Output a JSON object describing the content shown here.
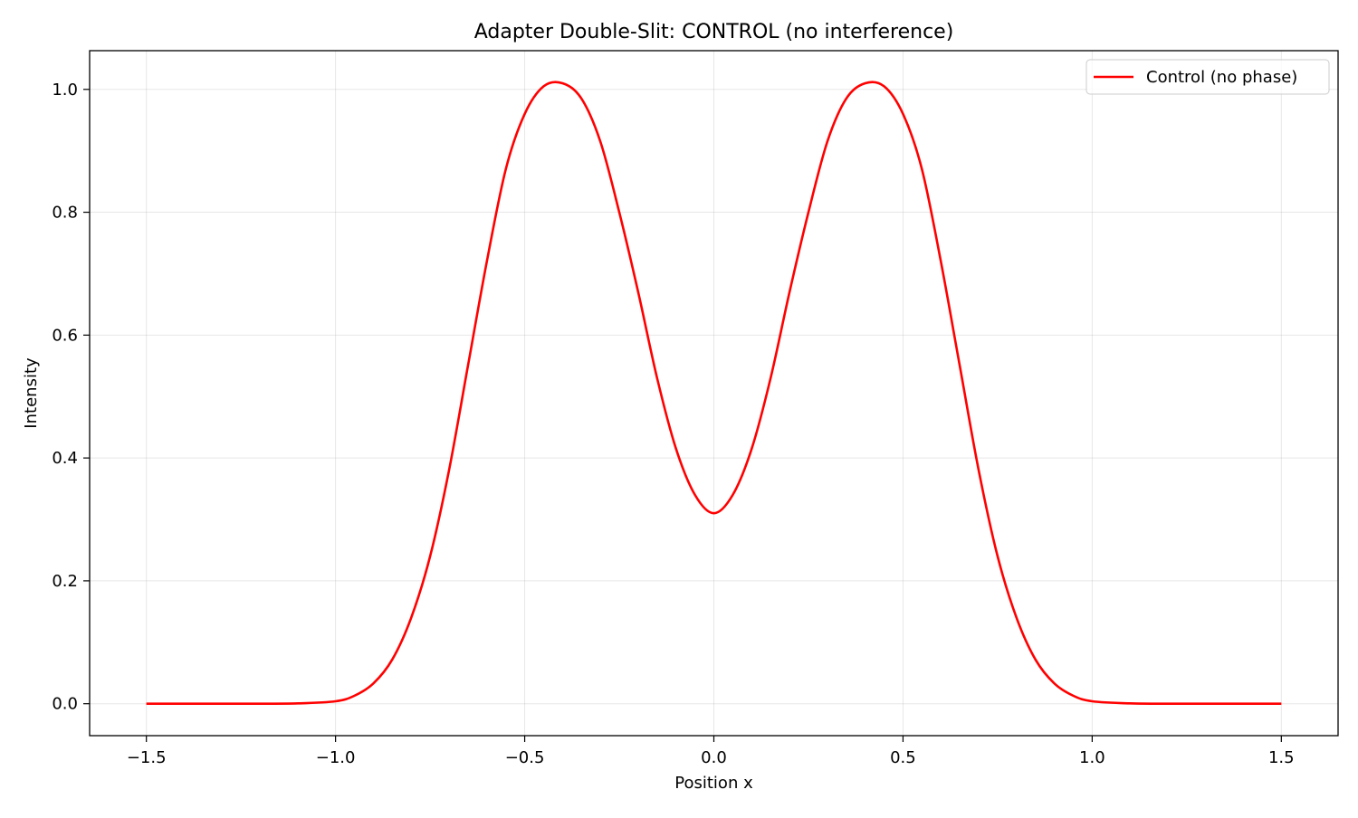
{
  "chart_data": {
    "type": "line",
    "title": "Adapter Double-Slit: CONTROL (no interference)",
    "xlabel": "Position x",
    "ylabel": "Intensity",
    "xlim": [
      -1.65,
      1.65
    ],
    "ylim": [
      -0.052,
      1.063
    ],
    "x_ticks": [
      -1.5,
      -1.0,
      -0.5,
      0.0,
      0.5,
      1.0,
      1.5
    ],
    "x_tick_labels": [
      "−1.5",
      "−1.0",
      "−0.5",
      "0.0",
      "0.5",
      "1.0",
      "1.5"
    ],
    "y_ticks": [
      0.0,
      0.2,
      0.4,
      0.6,
      0.8,
      1.0
    ],
    "y_tick_labels": [
      "0.0",
      "0.2",
      "0.4",
      "0.6",
      "0.8",
      "1.0"
    ],
    "grid": true,
    "legend": {
      "placement": "upper-right"
    },
    "series": [
      {
        "name": "Control (no phase)",
        "color": "#ff0000",
        "x": [
          -1.5,
          -1.4,
          -1.3,
          -1.2,
          -1.1,
          -1.0,
          -0.95,
          -0.9,
          -0.85,
          -0.8,
          -0.75,
          -0.7,
          -0.65,
          -0.6,
          -0.55,
          -0.5,
          -0.45,
          -0.4,
          -0.35,
          -0.3,
          -0.25,
          -0.2,
          -0.15,
          -0.1,
          -0.05,
          0.0,
          0.05,
          0.1,
          0.15,
          0.2,
          0.25,
          0.3,
          0.35,
          0.4,
          0.45,
          0.5,
          0.55,
          0.6,
          0.65,
          0.7,
          0.75,
          0.8,
          0.85,
          0.9,
          0.95,
          1.0,
          1.1,
          1.2,
          1.3,
          1.4,
          1.5
        ],
        "y": [
          0.0,
          0.0,
          0.0,
          0.0,
          0.0005,
          0.004,
          0.013,
          0.033,
          0.072,
          0.14,
          0.24,
          0.38,
          0.55,
          0.72,
          0.87,
          0.96,
          1.005,
          1.01,
          0.985,
          0.915,
          0.8,
          0.67,
          0.53,
          0.415,
          0.34,
          0.31,
          0.34,
          0.415,
          0.53,
          0.67,
          0.8,
          0.915,
          0.985,
          1.01,
          1.005,
          0.96,
          0.87,
          0.72,
          0.55,
          0.38,
          0.24,
          0.14,
          0.072,
          0.033,
          0.013,
          0.004,
          0.0005,
          0.0,
          0.0,
          0.0,
          0.0
        ]
      }
    ]
  }
}
